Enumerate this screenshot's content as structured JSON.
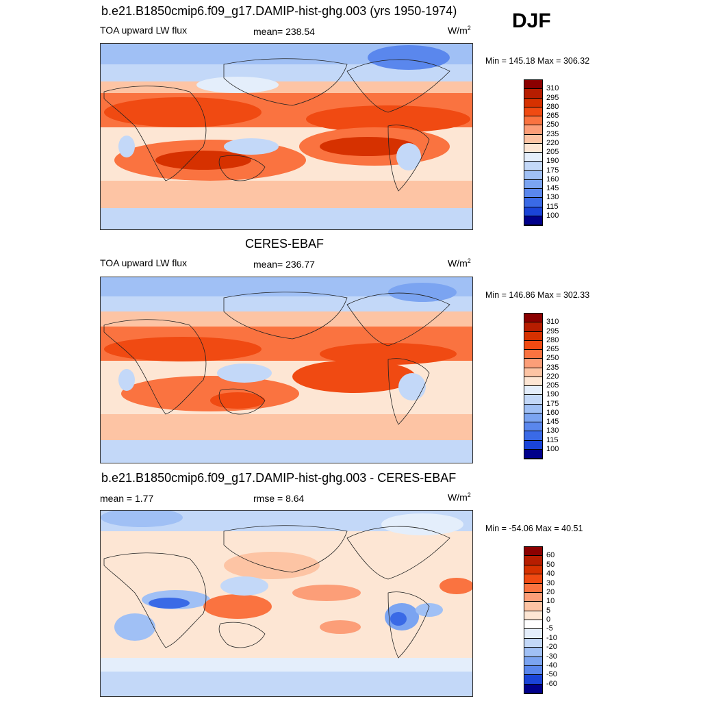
{
  "season": "DJF",
  "panels": [
    {
      "id": "model",
      "title": "b.e21.B1850cmip6.f09_g17.DAMIP-hist-ghg.003 (yrs 1950-1974)",
      "left_label": "TOA upward LW flux",
      "center_label": "mean= 238.54",
      "units": "W/m",
      "units_sup": "2",
      "minmax": "Min = 145.18 Max = 306.32",
      "colorbar": {
        "labels": [
          "310",
          "295",
          "280",
          "265",
          "250",
          "235",
          "220",
          "205",
          "190",
          "175",
          "160",
          "145",
          "130",
          "115",
          "100"
        ],
        "colors": [
          "#8b0000",
          "#b71d00",
          "#d63100",
          "#f04a12",
          "#fa7340",
          "#fc9e78",
          "#fdc4a4",
          "#fde6d4",
          "#e4eefb",
          "#c3d8f8",
          "#a0c0f5",
          "#7ba4f1",
          "#5a87ed",
          "#3a6ae6",
          "#1a44d8",
          "#00008b"
        ]
      }
    },
    {
      "id": "obs",
      "title": "CERES-EBAF",
      "left_label": "TOA upward LW flux",
      "center_label": "mean= 236.77",
      "units": "W/m",
      "units_sup": "2",
      "minmax": "Min = 146.86 Max = 302.33",
      "colorbar": {
        "labels": [
          "310",
          "295",
          "280",
          "265",
          "250",
          "235",
          "220",
          "205",
          "190",
          "175",
          "160",
          "145",
          "130",
          "115",
          "100"
        ],
        "colors": [
          "#8b0000",
          "#b71d00",
          "#d63100",
          "#f04a12",
          "#fa7340",
          "#fc9e78",
          "#fdc4a4",
          "#fde6d4",
          "#e4eefb",
          "#c3d8f8",
          "#a0c0f5",
          "#7ba4f1",
          "#5a87ed",
          "#3a6ae6",
          "#1a44d8",
          "#00008b"
        ]
      }
    },
    {
      "id": "diff",
      "title": "b.e21.B1850cmip6.f09_g17.DAMIP-hist-ghg.003 - CERES-EBAF",
      "left_label": "mean =   1.77",
      "center_label": "rmse =   8.64",
      "units": "W/m",
      "units_sup": "2",
      "minmax": "Min = -54.06 Max =  40.51",
      "colorbar": {
        "labels": [
          "60",
          "50",
          "40",
          "30",
          "20",
          "10",
          "5",
          "0",
          "-5",
          "-10",
          "-20",
          "-30",
          "-40",
          "-50",
          "-60"
        ],
        "colors": [
          "#8b0000",
          "#b71d00",
          "#d63100",
          "#f04a12",
          "#fa7340",
          "#fc9e78",
          "#fdc4a4",
          "#fde6d4",
          "#ffffff",
          "#e4eefb",
          "#c3d8f8",
          "#a0c0f5",
          "#7ba4f1",
          "#5a87ed",
          "#1a44d8",
          "#00008b"
        ]
      }
    }
  ]
}
